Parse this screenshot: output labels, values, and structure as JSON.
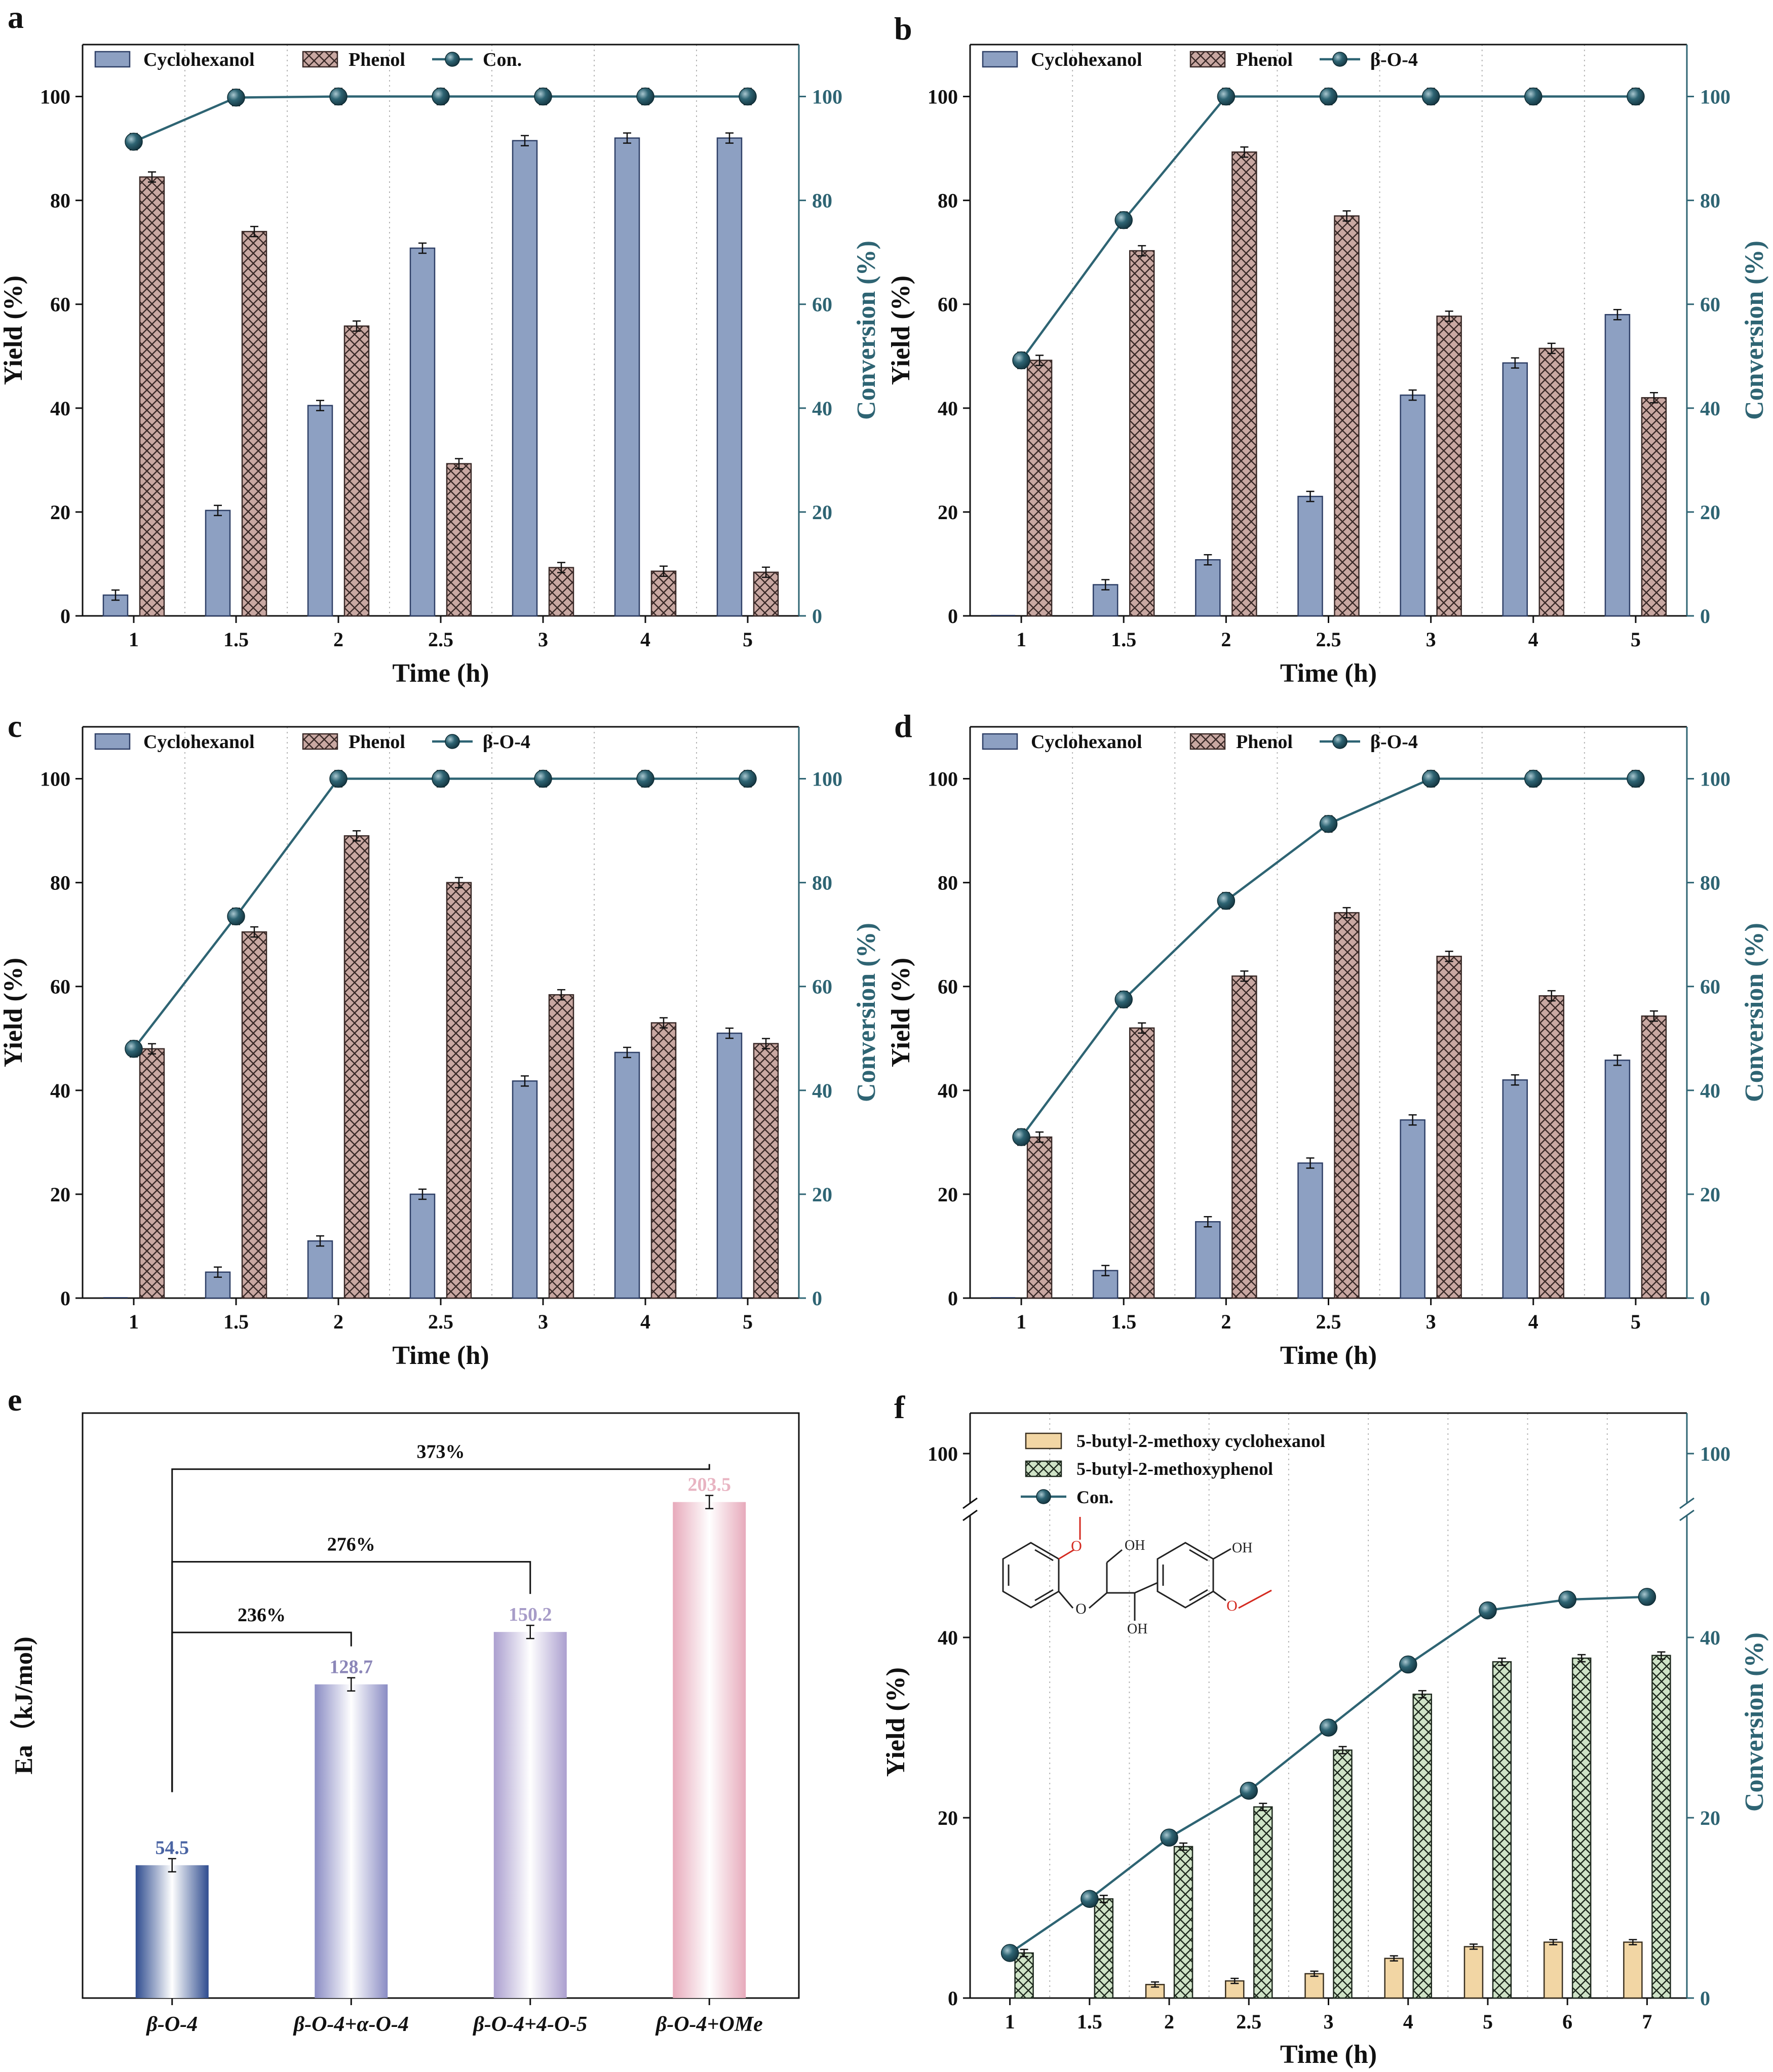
{
  "colors": {
    "cyclohexanol": "#8da0c2",
    "cyclohexanol_edge": "#2e3f66",
    "phenol_fill": "#c9a8a2",
    "phenol_hatch": "#3a2a28",
    "f_bar1": "#f2d6a4",
    "f_bar2": "#cfe3c7",
    "teal": "#2e6473",
    "axis": "#111111",
    "grid": "#b5b5b5",
    "red": "#d42a20"
  },
  "chart_data": [
    {
      "id": "a",
      "label": "a",
      "type": "bar",
      "categories": [
        "1",
        "1.5",
        "2",
        "2.5",
        "3",
        "4",
        "5"
      ],
      "xlabel": "Time (h)",
      "ylabel": "Yield (%)",
      "y2label": "Conversion (%)",
      "ylim": [
        0,
        110
      ],
      "y2lim": [
        0,
        110
      ],
      "yticks": [
        0,
        20,
        40,
        60,
        80,
        100
      ],
      "y2ticks": [
        0,
        20,
        40,
        60,
        80,
        100
      ],
      "legend": [
        "Cyclohexanol",
        "Phenol",
        "Con."
      ],
      "series": [
        {
          "name": "Cyclohexanol",
          "values": [
            4.0,
            20.3,
            40.5,
            70.8,
            91.5,
            92.0,
            92.0
          ]
        },
        {
          "name": "Phenol",
          "values": [
            84.5,
            74.0,
            55.8,
            29.3,
            9.3,
            8.6,
            8.4
          ]
        },
        {
          "name": "Con.",
          "axis": "right",
          "values": [
            91.3,
            99.8,
            100.0,
            100.0,
            100.0,
            100.0,
            100.0
          ]
        }
      ]
    },
    {
      "id": "b",
      "label": "b",
      "type": "bar",
      "categories": [
        "1",
        "1.5",
        "2",
        "2.5",
        "3",
        "4",
        "5"
      ],
      "xlabel": "Time (h)",
      "ylabel": "Yield (%)",
      "y2label": "Conversion (%)",
      "ylim": [
        0,
        110
      ],
      "y2lim": [
        0,
        110
      ],
      "yticks": [
        0,
        20,
        40,
        60,
        80,
        100
      ],
      "y2ticks": [
        0,
        20,
        40,
        60,
        80,
        100
      ],
      "legend": [
        "Cyclohexanol",
        "Phenol",
        "β-O-4"
      ],
      "series": [
        {
          "name": "Cyclohexanol",
          "values": [
            0,
            6.0,
            10.8,
            23.0,
            42.5,
            48.7,
            58.0
          ]
        },
        {
          "name": "Phenol",
          "values": [
            49.2,
            70.3,
            89.3,
            77.0,
            57.7,
            51.5,
            42.0
          ]
        },
        {
          "name": "β-O-4",
          "axis": "right",
          "values": [
            49.2,
            76.2,
            100.0,
            100.0,
            100.0,
            100.0,
            100.0
          ]
        }
      ]
    },
    {
      "id": "c",
      "label": "c",
      "type": "bar",
      "categories": [
        "1",
        "1.5",
        "2",
        "2.5",
        "3",
        "4",
        "5"
      ],
      "xlabel": "Time (h)",
      "ylabel": "Yield (%)",
      "y2label": "Conversion (%)",
      "ylim": [
        0,
        110
      ],
      "y2lim": [
        0,
        110
      ],
      "yticks": [
        0,
        20,
        40,
        60,
        80,
        100
      ],
      "y2ticks": [
        0,
        20,
        40,
        60,
        80,
        100
      ],
      "legend": [
        "Cyclohexanol",
        "Phenol",
        "β-O-4"
      ],
      "series": [
        {
          "name": "Cyclohexanol",
          "values": [
            0,
            5.0,
            11.0,
            20.0,
            41.8,
            47.3,
            51.0
          ]
        },
        {
          "name": "Phenol",
          "values": [
            48.0,
            70.5,
            89.0,
            80.0,
            58.4,
            53.0,
            49.0
          ]
        },
        {
          "name": "β-O-4",
          "axis": "right",
          "values": [
            48.0,
            73.5,
            100.0,
            100.0,
            100.0,
            100.0,
            100.0
          ]
        }
      ]
    },
    {
      "id": "d",
      "label": "d",
      "type": "bar",
      "categories": [
        "1",
        "1.5",
        "2",
        "2.5",
        "3",
        "4",
        "5"
      ],
      "xlabel": "Time (h)",
      "ylabel": "Yield (%)",
      "y2label": "Conversion (%)",
      "ylim": [
        0,
        110
      ],
      "y2lim": [
        0,
        110
      ],
      "yticks": [
        0,
        20,
        40,
        60,
        80,
        100
      ],
      "y2ticks": [
        0,
        20,
        40,
        60,
        80,
        100
      ],
      "legend": [
        "Cyclohexanol",
        "Phenol",
        "β-O-4"
      ],
      "series": [
        {
          "name": "Cyclohexanol",
          "values": [
            0,
            5.3,
            14.7,
            26.0,
            34.3,
            42.0,
            45.8
          ]
        },
        {
          "name": "Phenol",
          "values": [
            31.0,
            52.0,
            62.0,
            74.2,
            65.8,
            58.2,
            54.3
          ]
        },
        {
          "name": "β-O-4",
          "axis": "right",
          "values": [
            31.0,
            57.5,
            76.5,
            91.3,
            100.0,
            100.0,
            100.0
          ]
        }
      ]
    },
    {
      "id": "e",
      "label": "e",
      "type": "bar",
      "categories": [
        "β-O-4",
        "β-O-4+α-O-4",
        "β-O-4+4-O-5",
        "β-O-4+OMe"
      ],
      "ylabel": "Ea（kJ/mol)",
      "ylim": [
        0,
        240
      ],
      "values": [
        54.5,
        128.7,
        150.2,
        203.5
      ],
      "value_labels": [
        "54.5",
        "128.7",
        "150.2",
        "203.5"
      ],
      "label_colors": [
        "#4a64a3",
        "#8b86b8",
        "#a79cc8",
        "#e8b4c2"
      ],
      "bar_colors": [
        "#2f4c8f",
        "#8a8cc4",
        "#ab9fcf",
        "#e7aabb"
      ],
      "brackets": [
        {
          "text": "236%",
          "from": 0,
          "to": 1,
          "level": 150
        },
        {
          "text": "276%",
          "from": 0,
          "to": 2,
          "level": 179
        },
        {
          "text": "373%",
          "from": 0,
          "to": 3,
          "level": 217
        }
      ]
    },
    {
      "id": "f",
      "label": "f",
      "type": "bar",
      "categories": [
        "1",
        "1.5",
        "2",
        "2.5",
        "3",
        "4",
        "5",
        "6",
        "7"
      ],
      "xlabel": "Time (h)",
      "ylabel": "Yield (%)",
      "y2label": "Conversion (%)",
      "yticks": [
        0,
        20,
        40,
        100
      ],
      "y2ticks": [
        0,
        20,
        40,
        100
      ],
      "axis_break": true,
      "legend": [
        "5-butyl-2-methoxy cyclohexanol",
        "5-butyl-2-methoxyphenol",
        "Con."
      ],
      "series": [
        {
          "name": "5-butyl-2-methoxy cyclohexanol",
          "values": [
            0,
            0,
            1.5,
            1.9,
            2.7,
            4.4,
            5.7,
            6.2,
            6.2
          ]
        },
        {
          "name": "5-butyl-2-methoxyphenol",
          "values": [
            5.0,
            11.0,
            16.8,
            21.2,
            27.5,
            33.7,
            37.3,
            37.7,
            38.0
          ]
        },
        {
          "name": "Con.",
          "axis": "right",
          "values": [
            5.0,
            11.0,
            17.8,
            23.0,
            30.0,
            37.0,
            43.0,
            44.2,
            44.5
          ]
        }
      ]
    }
  ],
  "structure_f": {
    "labels": [
      "OH",
      "OH",
      "OH"
    ]
  }
}
